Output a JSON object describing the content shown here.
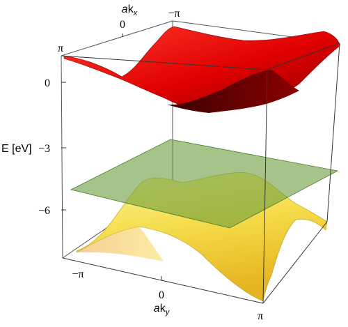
{
  "chart_data": {
    "type": "surface3d",
    "title": "",
    "xlabel": "ak_x",
    "ylabel": "ak_y",
    "zlabel": "E [eV]",
    "axis_labels": {
      "x": {
        "prefix": "a",
        "main": "k",
        "sub": "x"
      },
      "y": {
        "prefix": "a",
        "main": "k",
        "sub": "y"
      },
      "z": "E [eV]"
    },
    "x_ticks": [
      "−π",
      "0",
      "π"
    ],
    "y_ticks": [
      "−π",
      "0",
      "π"
    ],
    "z_ticks": [
      "0",
      "−3",
      "−6"
    ],
    "xlim": [
      -3.14159,
      3.14159
    ],
    "ylim": [
      -3.14159,
      3.14159
    ],
    "zlim": [
      -8.7,
      1.7
    ],
    "boxed": true,
    "series": [
      {
        "color": "#e00000",
        "opacity": 1.0,
        "grid_k": [
          -3.14159,
          -1.5708,
          0,
          1.5708,
          3.14159
        ],
        "energy": [
          [
            1.4,
            0.8,
            -0.4,
            0.8,
            1.4
          ],
          [
            0.8,
            0.2,
            -0.9,
            0.2,
            0.8
          ],
          [
            -0.4,
            -0.9,
            -1.9,
            -0.9,
            -0.4
          ],
          [
            0.8,
            0.2,
            -0.9,
            0.2,
            0.8
          ],
          [
            1.4,
            0.8,
            -0.4,
            0.8,
            1.4
          ]
        ]
      },
      {
        "color": "#6a9c3a",
        "opacity": 0.6,
        "energy_constant": -4.7
      },
      {
        "color": "#f2d23c",
        "opacity": 1.0,
        "grid_k": [
          -3.14159,
          -1.5708,
          0,
          1.5708,
          3.14159
        ],
        "energy": [
          [
            -8.5,
            -7.3,
            -5.7,
            -7.3,
            -8.5
          ],
          [
            -7.3,
            -6.6,
            -5.2,
            -6.6,
            -7.3
          ],
          [
            -5.7,
            -5.2,
            -4.4,
            -5.2,
            -5.7
          ],
          [
            -7.3,
            -6.6,
            -5.2,
            -6.6,
            -7.3
          ],
          [
            -8.5,
            -7.3,
            -5.7,
            -7.3,
            -8.5
          ]
        ]
      }
    ]
  }
}
